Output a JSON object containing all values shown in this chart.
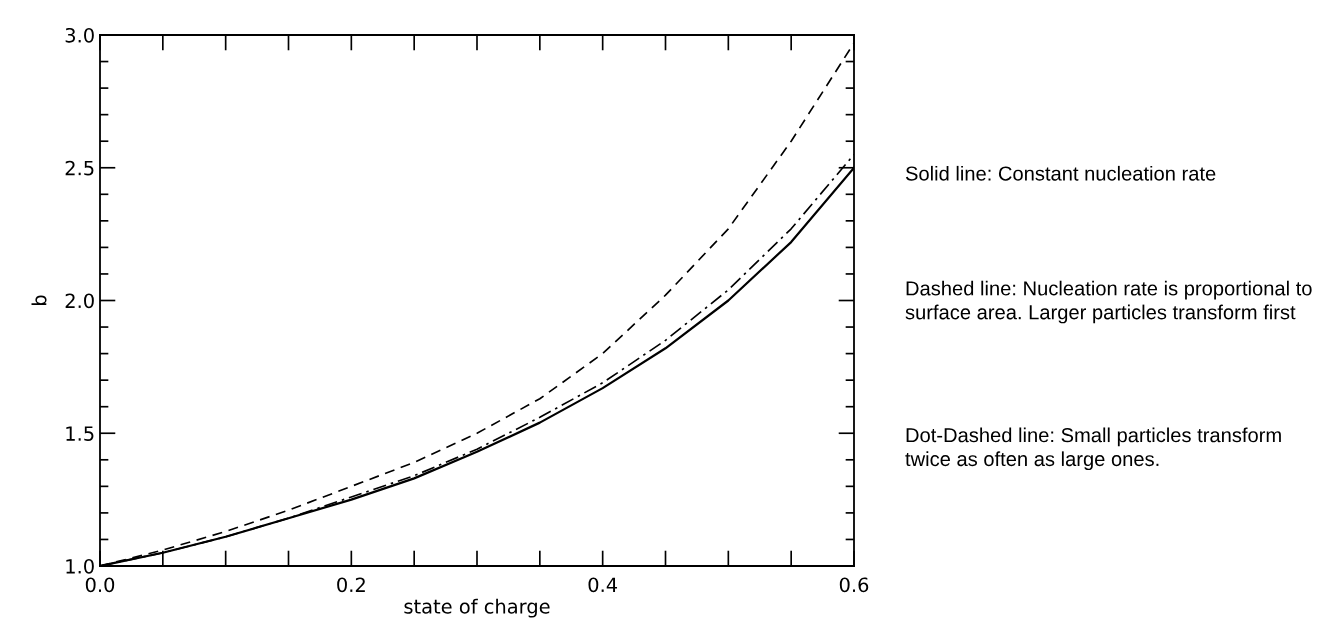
{
  "chart_data": {
    "type": "line",
    "xlabel": "state of charge",
    "ylabel": "b",
    "x": [
      0,
      0.05,
      0.1,
      0.15,
      0.2,
      0.25,
      0.3,
      0.35,
      0.4,
      0.45,
      0.5,
      0.55,
      0.6
    ],
    "series": [
      {
        "color": "#000000",
        "line_style": "solid",
        "values": [
          1.0,
          1.05,
          1.11,
          1.18,
          1.25,
          1.33,
          1.43,
          1.54,
          1.67,
          1.82,
          2.0,
          2.22,
          2.5
        ]
      },
      {
        "color": "#000000",
        "line_style": "dashed",
        "values": [
          1.0,
          1.06,
          1.13,
          1.21,
          1.3,
          1.39,
          1.5,
          1.63,
          1.8,
          2.02,
          2.27,
          2.6,
          2.97
        ]
      },
      {
        "color": "#000000",
        "line_style": "dashdot",
        "values": [
          1.0,
          1.05,
          1.11,
          1.18,
          1.26,
          1.34,
          1.44,
          1.56,
          1.69,
          1.85,
          2.04,
          2.27,
          2.55
        ]
      }
    ],
    "xlim": [
      0,
      0.6
    ],
    "xticks": [
      {
        "value": 0,
        "label": "0.0"
      },
      {
        "value": 0.05,
        "label": null
      },
      {
        "value": 0.1,
        "label": null
      },
      {
        "value": 0.15,
        "label": null
      },
      {
        "value": 0.2,
        "label": "0.2"
      },
      {
        "value": 0.25,
        "label": null
      },
      {
        "value": 0.3,
        "label": null
      },
      {
        "value": 0.35,
        "label": null
      },
      {
        "value": 0.4,
        "label": "0.4"
      },
      {
        "value": 0.45,
        "label": null
      },
      {
        "value": 0.5,
        "label": null
      },
      {
        "value": 0.55,
        "label": null
      },
      {
        "value": 0.6,
        "label": "0.6"
      }
    ],
    "ylim": [
      1,
      3
    ],
    "yticks": [
      {
        "value": 1,
        "label": "1.0"
      },
      {
        "value": 1.1,
        "label": null
      },
      {
        "value": 1.2,
        "label": null
      },
      {
        "value": 1.3,
        "label": null
      },
      {
        "value": 1.4,
        "label": null
      },
      {
        "value": 1.5,
        "label": "1.5"
      },
      {
        "value": 1.6,
        "label": null
      },
      {
        "value": 1.7,
        "label": null
      },
      {
        "value": 1.8,
        "label": null
      },
      {
        "value": 1.9,
        "label": null
      },
      {
        "value": 2,
        "label": "2.0"
      },
      {
        "value": 2.1,
        "label": null
      },
      {
        "value": 2.2,
        "label": null
      },
      {
        "value": 2.3,
        "label": null
      },
      {
        "value": 2.4,
        "label": null
      },
      {
        "value": 2.5,
        "label": "2.5"
      },
      {
        "value": 2.6,
        "label": null
      },
      {
        "value": 2.7,
        "label": null
      },
      {
        "value": 2.8,
        "label": null
      },
      {
        "value": 2.9,
        "label": null
      },
      {
        "value": 3,
        "label": "3.0"
      }
    ],
    "annotations": [
      "Solid line: Constant nucleation rate",
      "Dashed line: Nucleation rate is proportional to surface area. Larger particles transform first",
      "Dot-Dashed line: Small particles transform twice as often as large ones."
    ]
  }
}
